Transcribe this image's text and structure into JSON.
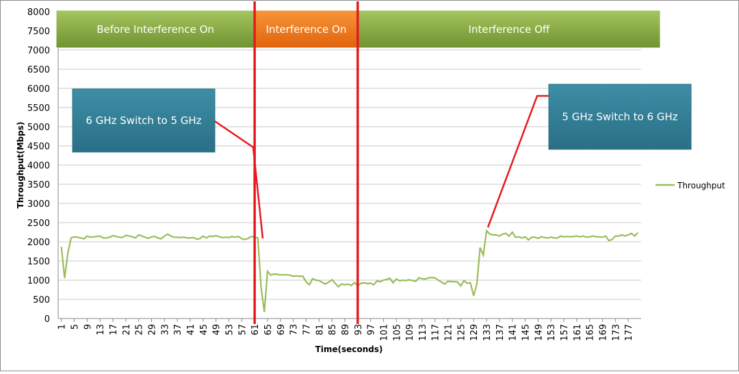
{
  "chart_data": {
    "type": "line",
    "x_label": "Time(seconds)",
    "y_label": "Throughput(Mbps)",
    "x": [
      1,
      2,
      3,
      4,
      5,
      6,
      7,
      8,
      9,
      10,
      11,
      12,
      13,
      14,
      15,
      16,
      17,
      18,
      19,
      20,
      21,
      22,
      23,
      24,
      25,
      26,
      27,
      28,
      29,
      30,
      31,
      32,
      33,
      34,
      35,
      36,
      37,
      38,
      39,
      40,
      41,
      42,
      43,
      44,
      45,
      46,
      47,
      48,
      49,
      50,
      51,
      52,
      53,
      54,
      55,
      56,
      57,
      58,
      59,
      60,
      61,
      62,
      63,
      64,
      65,
      66,
      67,
      68,
      69,
      70,
      71,
      72,
      73,
      74,
      75,
      76,
      77,
      78,
      79,
      80,
      81,
      82,
      83,
      84,
      85,
      86,
      87,
      88,
      89,
      90,
      91,
      92,
      93,
      94,
      95,
      96,
      97,
      98,
      99,
      100,
      101,
      102,
      103,
      104,
      105,
      106,
      107,
      108,
      109,
      110,
      111,
      112,
      113,
      114,
      115,
      116,
      117,
      118,
      119,
      120,
      121,
      122,
      123,
      124,
      125,
      126,
      127,
      128,
      129,
      130,
      131,
      132,
      133,
      134,
      135,
      136,
      137,
      138,
      139,
      140,
      141,
      142,
      143,
      144,
      145,
      146,
      147,
      148,
      149,
      150,
      151,
      152,
      153,
      154,
      155,
      156,
      157,
      158,
      159,
      160,
      161,
      162,
      163,
      164,
      165,
      166,
      167,
      168,
      169,
      170,
      171,
      172,
      173,
      174,
      175,
      176,
      177,
      178,
      179,
      180
    ],
    "series": [
      {
        "name": "Throughput",
        "color": "#9bbb59",
        "values": [
          1870,
          1050,
          1700,
          2100,
          2130,
          2120,
          2100,
          2080,
          2150,
          2120,
          2130,
          2140,
          2150,
          2100,
          2100,
          2120,
          2160,
          2140,
          2120,
          2110,
          2170,
          2150,
          2130,
          2100,
          2180,
          2150,
          2120,
          2090,
          2130,
          2140,
          2100,
          2080,
          2150,
          2200,
          2150,
          2120,
          2120,
          2110,
          2120,
          2100,
          2100,
          2110,
          2070,
          2080,
          2150,
          2100,
          2150,
          2140,
          2160,
          2130,
          2110,
          2120,
          2110,
          2140,
          2120,
          2140,
          2080,
          2060,
          2090,
          2140,
          2120,
          2100,
          800,
          170,
          1230,
          1130,
          1160,
          1150,
          1140,
          1140,
          1140,
          1130,
          1100,
          1110,
          1100,
          1100,
          950,
          880,
          1040,
          1000,
          990,
          940,
          900,
          950,
          1010,
          920,
          830,
          900,
          880,
          900,
          860,
          940,
          850,
          920,
          930,
          910,
          920,
          880,
          980,
          960,
          1000,
          1020,
          1050,
          930,
          1030,
          980,
          1000,
          990,
          1010,
          990,
          970,
          1060,
          1040,
          1030,
          1060,
          1070,
          1060,
          1000,
          950,
          900,
          970,
          960,
          960,
          950,
          850,
          990,
          920,
          930,
          590,
          900,
          1850,
          1650,
          2290,
          2200,
          2180,
          2180,
          2150,
          2200,
          2220,
          2150,
          2250,
          2120,
          2130,
          2100,
          2130,
          2050,
          2120,
          2120,
          2090,
          2130,
          2110,
          2100,
          2120,
          2100,
          2100,
          2150,
          2130,
          2140,
          2130,
          2140,
          2150,
          2130,
          2150,
          2120,
          2130,
          2150,
          2130,
          2130,
          2120,
          2150,
          2030,
          2060,
          2150,
          2150,
          2180,
          2150,
          2180,
          2220,
          2150,
          2240
        ]
      }
    ],
    "xlim": [
      0,
      181
    ],
    "xticks": [
      1,
      5,
      9,
      13,
      17,
      21,
      25,
      29,
      33,
      37,
      41,
      45,
      49,
      53,
      57,
      61,
      65,
      69,
      73,
      77,
      81,
      85,
      89,
      93,
      97,
      101,
      105,
      109,
      113,
      117,
      121,
      125,
      129,
      133,
      137,
      141,
      145,
      149,
      153,
      157,
      161,
      165,
      169,
      173,
      177
    ],
    "ylim": [
      0,
      8000
    ],
    "yticks": [
      0,
      500,
      1000,
      1500,
      2000,
      2500,
      3000,
      3500,
      4000,
      4500,
      5000,
      5500,
      6000,
      6500,
      7000,
      7500,
      8000
    ],
    "grid": true,
    "legend": "right",
    "vlines": [
      61,
      93
    ],
    "vline_color": "#e8191f",
    "phases": [
      {
        "label": "Before Interference On",
        "color": "#7fa43a"
      },
      {
        "label": "Interference On",
        "color": "#f07b1a"
      },
      {
        "label": "Interference Off",
        "color": "#7fa43a"
      }
    ],
    "annotations": [
      "6 GHz Switch to 5 GHz",
      "5 GHz Switch to 6 GHz"
    ]
  }
}
